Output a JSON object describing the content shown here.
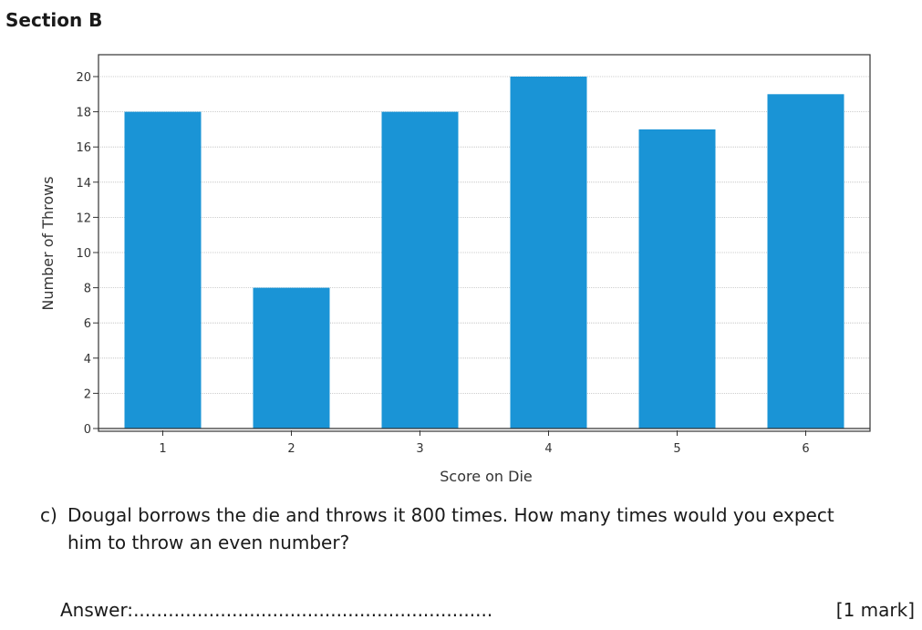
{
  "section_title": "Section B",
  "chart_data": {
    "type": "bar",
    "categories": [
      "1",
      "2",
      "3",
      "4",
      "5",
      "6"
    ],
    "values": [
      18,
      8,
      18,
      20,
      17,
      19
    ],
    "xlabel": "Score on Die",
    "ylabel": "Number of Throws",
    "ylim": [
      0,
      20.8
    ],
    "yticks": [
      0,
      2,
      4,
      6,
      8,
      10,
      12,
      14,
      16,
      18,
      20
    ],
    "grid": true,
    "bar_color": "#1a94d6"
  },
  "question": {
    "label": "c)",
    "line1": "Dougal borrows the die and throws it 800 times.  How many times would you expect",
    "line2": "him to throw an even number?"
  },
  "answer": {
    "label": "Answer:",
    "dots": ".............................................................."
  },
  "marks": "[1 mark]"
}
